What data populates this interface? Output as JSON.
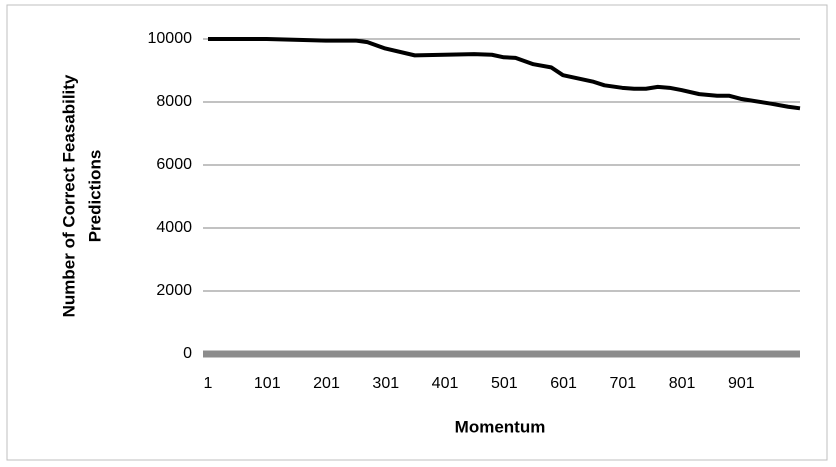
{
  "chart_data": {
    "type": "line",
    "x_label": "Momentum",
    "y_label": [
      "Number of Correct Feasability",
      "Predictions"
    ],
    "x": [
      1,
      100,
      200,
      250,
      270,
      300,
      350,
      400,
      450,
      480,
      500,
      520,
      550,
      580,
      600,
      650,
      670,
      700,
      720,
      740,
      760,
      780,
      800,
      830,
      860,
      880,
      900,
      950,
      980,
      1000
    ],
    "series": [
      {
        "color": "#000000",
        "values": [
          10000,
          10000,
          9950,
          9950,
          9900,
          9700,
          9480,
          9500,
          9520,
          9500,
          9420,
          9400,
          9200,
          9100,
          8850,
          8650,
          8530,
          8450,
          8420,
          8420,
          8480,
          8450,
          8380,
          8250,
          8200,
          8200,
          8100,
          7950,
          7850,
          7800
        ]
      }
    ],
    "xlim": [
      1,
      1000
    ],
    "xticks": [
      1,
      101,
      201,
      301,
      401,
      501,
      601,
      701,
      801,
      901
    ],
    "ylim": [
      0,
      10000
    ],
    "yticks": [
      0,
      2000,
      4000,
      6000,
      8000,
      10000
    ],
    "grid": true
  }
}
